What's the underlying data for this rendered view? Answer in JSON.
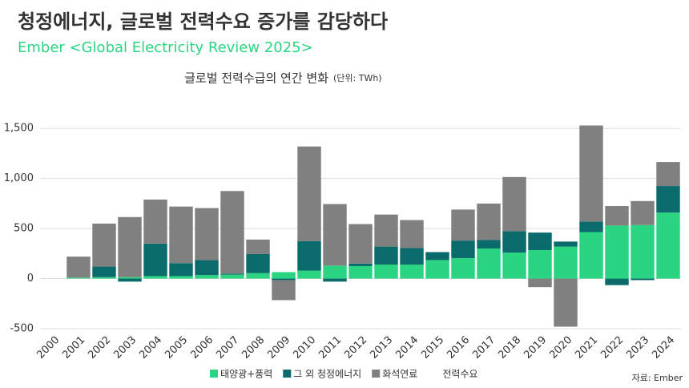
{
  "header": {
    "title": "청정에너지, 글로벌 전력수요 증가를 감당하다",
    "subtitle": "Ember <Global Electricity Review 2025>"
  },
  "chart_data": {
    "type": "stacked_bar",
    "title": "글로벌 전력수급의 연간 변화",
    "unit_note": "(단위: TWh)",
    "categories": [
      "2000",
      "2001",
      "2002",
      "2003",
      "2004",
      "2005",
      "2006",
      "2007",
      "2008",
      "2009",
      "2010",
      "2011",
      "2012",
      "2013",
      "2014",
      "2015",
      "2016",
      "2017",
      "2018",
      "2019",
      "2020",
      "2021",
      "2022",
      "2023",
      "2024"
    ],
    "series": [
      {
        "name": "태양광+풍력",
        "color": "#2bd480",
        "values": [
          0,
          10,
          15,
          15,
          25,
          25,
          35,
          40,
          55,
          65,
          80,
          130,
          125,
          140,
          140,
          185,
          205,
          300,
          260,
          285,
          320,
          465,
          530,
          535,
          660
        ]
      },
      {
        "name": "그 외 청정에너지",
        "color": "#0b6b6b",
        "values": [
          0,
          0,
          105,
          -30,
          325,
          130,
          150,
          10,
          190,
          -15,
          295,
          -30,
          25,
          180,
          165,
          80,
          175,
          85,
          215,
          175,
          50,
          105,
          -65,
          -15,
          265
        ]
      },
      {
        "name": "화석연료",
        "color": "#808080",
        "values": [
          0,
          210,
          430,
          600,
          440,
          565,
          520,
          825,
          145,
          -200,
          945,
          615,
          395,
          320,
          280,
          0,
          310,
          365,
          540,
          -85,
          -480,
          960,
          195,
          240,
          240
        ]
      }
    ],
    "extra_legend": "전력수요",
    "ylim": [
      -500,
      1550
    ],
    "yticks": [
      -500,
      0,
      500,
      {
        "value": 1000,
        "label": "1,000"
      },
      {
        "value": 1500,
        "label": "1,500"
      }
    ],
    "grid": true,
    "source": "자료: Ember"
  }
}
